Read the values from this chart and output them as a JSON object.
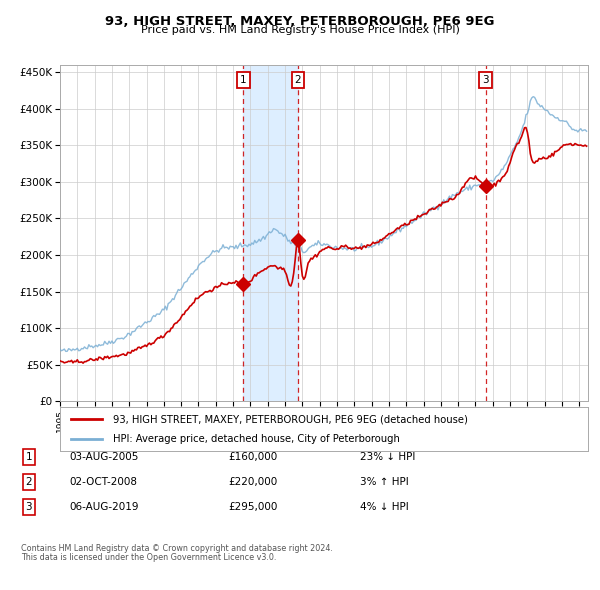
{
  "title": "93, HIGH STREET, MAXEY, PETERBOROUGH, PE6 9EG",
  "subtitle": "Price paid vs. HM Land Registry's House Price Index (HPI)",
  "transactions": [
    {
      "num": "1",
      "date": "03-AUG-2005",
      "price": 160000,
      "hpi_diff": "23% ↓ HPI",
      "x_year": 2005.58
    },
    {
      "num": "2",
      "date": "02-OCT-2008",
      "price": 220000,
      "hpi_diff": "3% ↑ HPI",
      "x_year": 2008.75
    },
    {
      "num": "3",
      "date": "06-AUG-2019",
      "price": 295000,
      "hpi_diff": "4% ↓ HPI",
      "x_year": 2019.58
    }
  ],
  "legend_line1": "93, HIGH STREET, MAXEY, PETERBOROUGH, PE6 9EG (detached house)",
  "legend_line2": "HPI: Average price, detached house, City of Peterborough",
  "footer1": "Contains HM Land Registry data © Crown copyright and database right 2024.",
  "footer2": "This data is licensed under the Open Government Licence v3.0.",
  "hpi_color": "#7bafd4",
  "price_color": "#cc0000",
  "highlight_color": "#ddeeff",
  "grid_color": "#cccccc",
  "background_color": "#ffffff",
  "ylim": [
    0,
    460000
  ],
  "xlim_start": 1995.0,
  "xlim_end": 2025.5
}
